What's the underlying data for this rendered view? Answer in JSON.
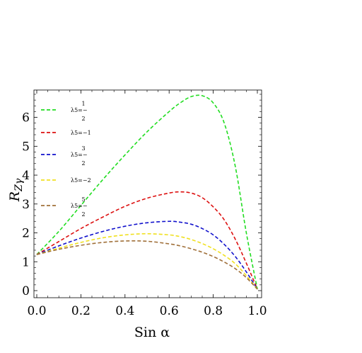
{
  "chart_data": {
    "type": "line",
    "xlabel": "Sin α",
    "ylabel": "R_Zγ",
    "xlim": [
      0.0,
      1.0
    ],
    "ylim": [
      0,
      6.8
    ],
    "x_ticks": [
      "0.0",
      "0.2",
      "0.4",
      "0.6",
      "0.8",
      "1.0"
    ],
    "y_ticks": [
      "0",
      "1",
      "2",
      "3",
      "4",
      "5",
      "6"
    ],
    "grid": false,
    "legend_position": "top-left",
    "line_style": "dashed",
    "x": [
      0.0,
      0.1,
      0.2,
      0.3,
      0.4,
      0.5,
      0.6,
      0.65,
      0.7,
      0.75,
      0.8,
      0.85,
      0.9,
      0.95,
      1.0
    ],
    "series": [
      {
        "name": "λ5=−1/2",
        "legend_main": "λ5=−",
        "legend_num": "1",
        "legend_den": "2",
        "color": "#22dd22",
        "values": [
          1.25,
          2.05,
          2.95,
          3.85,
          4.7,
          5.5,
          6.2,
          6.5,
          6.72,
          6.75,
          6.5,
          5.8,
          4.3,
          2.0,
          0.05
        ]
      },
      {
        "name": "λ5=−1",
        "legend_main": "λ5=−1",
        "legend_num": "",
        "legend_den": "",
        "color": "#dd1111",
        "values": [
          1.25,
          1.7,
          2.15,
          2.55,
          2.92,
          3.2,
          3.38,
          3.42,
          3.38,
          3.22,
          2.9,
          2.45,
          1.78,
          0.95,
          0.05
        ]
      },
      {
        "name": "λ5=−3/2",
        "legend_main": "λ5=−",
        "legend_num": "3",
        "legend_den": "2",
        "color": "#1111cc",
        "values": [
          1.25,
          1.55,
          1.82,
          2.05,
          2.23,
          2.35,
          2.4,
          2.37,
          2.3,
          2.15,
          1.93,
          1.6,
          1.18,
          0.65,
          0.05
        ]
      },
      {
        "name": "λ5=−2",
        "legend_main": "λ5=−2",
        "legend_num": "",
        "legend_den": "",
        "color": "#f0e020",
        "values": [
          1.25,
          1.47,
          1.67,
          1.83,
          1.93,
          1.97,
          1.93,
          1.87,
          1.77,
          1.63,
          1.45,
          1.22,
          0.93,
          0.52,
          0.05
        ]
      },
      {
        "name": "λ5=−5/2",
        "legend_main": "λ5=−",
        "legend_num": "5",
        "legend_den": "2",
        "color": "#a0703a",
        "values": [
          1.25,
          1.43,
          1.57,
          1.67,
          1.72,
          1.71,
          1.62,
          1.55,
          1.45,
          1.33,
          1.18,
          0.99,
          0.76,
          0.45,
          0.05
        ]
      }
    ]
  }
}
